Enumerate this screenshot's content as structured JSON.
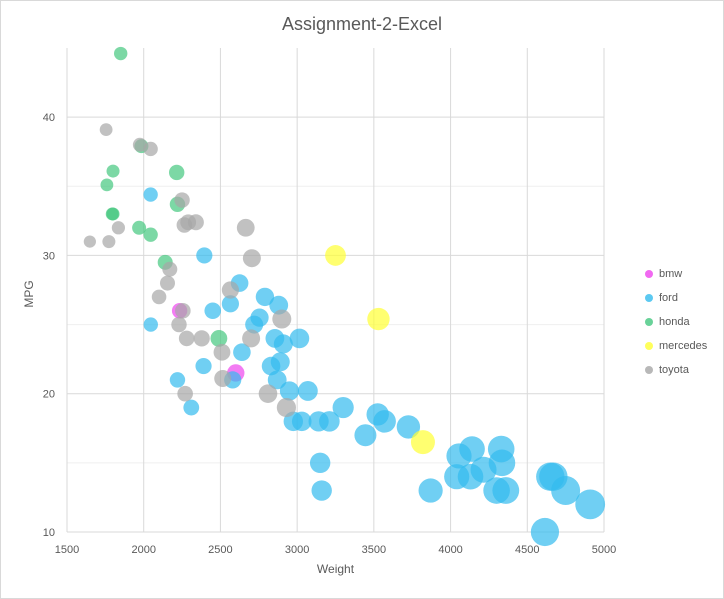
{
  "chart_data": {
    "type": "scatter",
    "title": "Assignment-2-Excel",
    "xlabel": "Weight",
    "ylabel": "MPG",
    "xlim": [
      1500,
      5000
    ],
    "ylim": [
      10,
      45
    ],
    "x_ticks": [
      1500,
      2000,
      2500,
      3000,
      3500,
      4000,
      4500,
      5000
    ],
    "y_ticks": [
      10,
      20,
      30,
      40
    ],
    "grid": true,
    "legend_position": "right",
    "series": [
      {
        "name": "bmw",
        "color": "#ee44ee",
        "points": [
          [
            2234,
            26
          ],
          [
            2600,
            21.5
          ]
        ]
      },
      {
        "name": "ford",
        "color": "#33bbee",
        "points": [
          [
            2046,
            25
          ],
          [
            2220,
            21
          ],
          [
            2310,
            19
          ],
          [
            2390,
            22
          ],
          [
            2395,
            30
          ],
          [
            2045,
            34.4
          ],
          [
            2450,
            26
          ],
          [
            2580,
            21
          ],
          [
            2565,
            26.5
          ],
          [
            2625,
            28
          ],
          [
            2640,
            23
          ],
          [
            2720,
            25
          ],
          [
            2755,
            25.5
          ],
          [
            2790,
            27
          ],
          [
            2830,
            22
          ],
          [
            2855,
            24
          ],
          [
            2870,
            21
          ],
          [
            2880,
            26.4
          ],
          [
            2890,
            22.3
          ],
          [
            2910,
            23.6
          ],
          [
            2950,
            20.2
          ],
          [
            2975,
            18
          ],
          [
            3015,
            24
          ],
          [
            3030,
            18
          ],
          [
            3070,
            20.2
          ],
          [
            3140,
            18
          ],
          [
            3150,
            15
          ],
          [
            3160,
            13
          ],
          [
            3210,
            18
          ],
          [
            3300,
            19
          ],
          [
            3445,
            17
          ],
          [
            3525,
            18.5
          ],
          [
            3570,
            18
          ],
          [
            3725,
            17.6
          ],
          [
            3870,
            13
          ],
          [
            4040,
            14
          ],
          [
            4055,
            15.5
          ],
          [
            4130,
            14
          ],
          [
            4140,
            16
          ],
          [
            4215,
            14.5
          ],
          [
            4300,
            13
          ],
          [
            4330,
            16
          ],
          [
            4335,
            15
          ],
          [
            4360,
            13
          ],
          [
            4615,
            10
          ],
          [
            4650,
            14
          ],
          [
            4670,
            14
          ],
          [
            4750,
            13
          ],
          [
            4910,
            12
          ]
        ]
      },
      {
        "name": "honda",
        "color": "#44c77f",
        "points": [
          [
            1850,
            44.6
          ],
          [
            1760,
            35.1
          ],
          [
            1800,
            36.1
          ],
          [
            1795,
            33
          ],
          [
            1800,
            33
          ],
          [
            1985,
            37.9
          ],
          [
            2215,
            36
          ],
          [
            1970,
            32
          ],
          [
            2045,
            31.5
          ],
          [
            2140,
            29.5
          ],
          [
            2220,
            33.7
          ],
          [
            2490,
            24
          ]
        ]
      },
      {
        "name": "mercedes",
        "color": "#ffff33",
        "points": [
          [
            3250,
            30
          ],
          [
            3530,
            25.4
          ],
          [
            3820,
            16.5
          ]
        ]
      },
      {
        "name": "toyota",
        "color": "#a6a6a6",
        "points": [
          [
            1649,
            31
          ],
          [
            1755,
            39.1
          ],
          [
            1773,
            31
          ],
          [
            1835,
            32
          ],
          [
            1975,
            38
          ],
          [
            2045,
            37.7
          ],
          [
            2100,
            27
          ],
          [
            2155,
            28
          ],
          [
            2170,
            29
          ],
          [
            2230,
            25
          ],
          [
            2250,
            34
          ],
          [
            2265,
            32.2
          ],
          [
            2280,
            24
          ],
          [
            2290,
            32.4
          ],
          [
            2340,
            32.4
          ],
          [
            2378,
            24
          ],
          [
            2510,
            23
          ],
          [
            2515,
            21.1
          ],
          [
            2565,
            27.5
          ],
          [
            2665,
            32
          ],
          [
            2700,
            24
          ],
          [
            2705,
            29.8
          ],
          [
            2270,
            20
          ],
          [
            2810,
            20
          ],
          [
            2900,
            25.4
          ],
          [
            2930,
            19
          ],
          [
            2255,
            26
          ]
        ]
      }
    ]
  }
}
